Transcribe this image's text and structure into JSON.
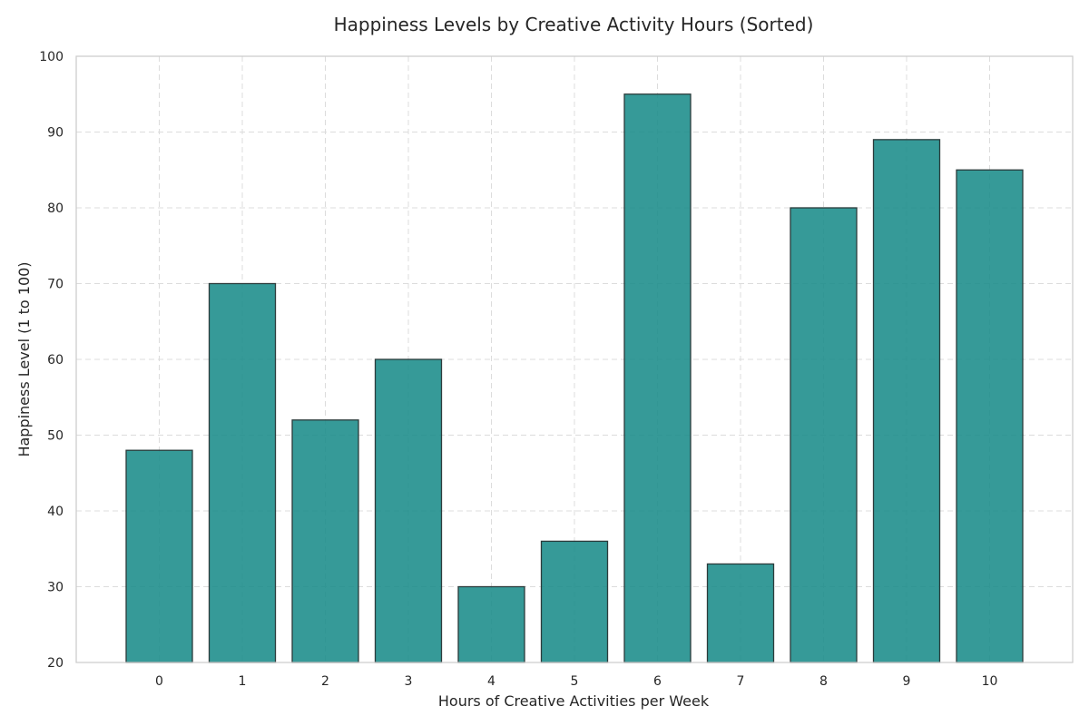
{
  "chart_data": {
    "type": "bar",
    "title": "Happiness Levels by Creative Activity Hours (Sorted)",
    "xlabel": "Hours of Creative Activities per Week",
    "ylabel": "Happiness Level (1 to 100)",
    "categories": [
      "0",
      "1",
      "2",
      "3",
      "4",
      "5",
      "6",
      "7",
      "8",
      "9",
      "10"
    ],
    "values": [
      48,
      70,
      52,
      60,
      30,
      36,
      95,
      33,
      80,
      89,
      85
    ],
    "ylim": [
      20,
      100
    ],
    "yticks": [
      "20",
      "30",
      "40",
      "50",
      "60",
      "70",
      "80",
      "90",
      "100"
    ],
    "grid": true,
    "bar_color": "#1a8c8a",
    "bar_edge_color": "#2b3b3b"
  }
}
